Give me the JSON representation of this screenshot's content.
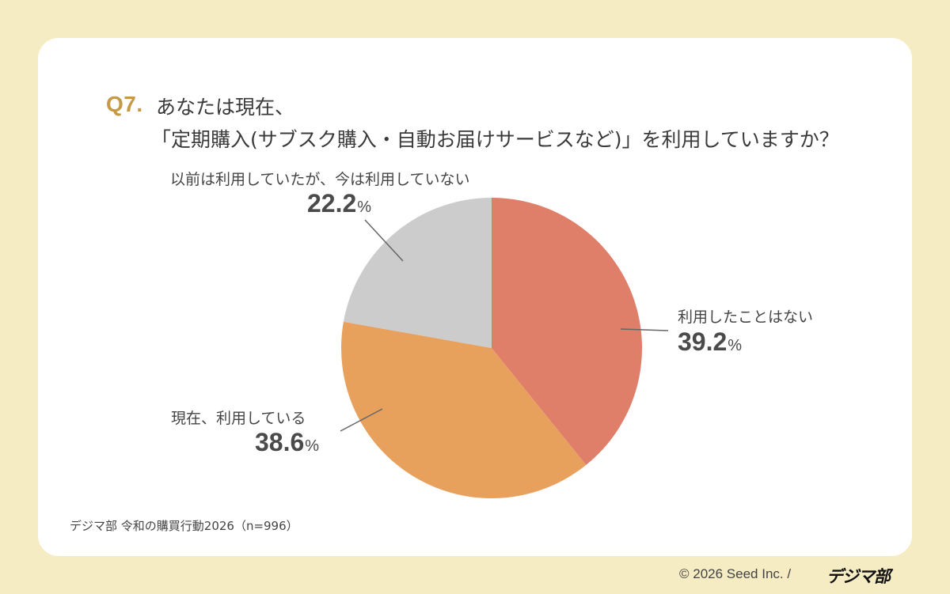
{
  "question": {
    "number": "Q7.",
    "line1": "あなたは現在、",
    "line2": "「定期購入(サブスク購入・自動お届けサービスなど)」を利用していますか？"
  },
  "labels": {
    "never": {
      "text": "利用したことはない",
      "value": "39.2",
      "unit": "%"
    },
    "current": {
      "text": "現在、利用している",
      "value": "38.6",
      "unit": "%"
    },
    "former": {
      "text": "以前は利用していたが、今は利用していない",
      "value": "22.2",
      "unit": "%"
    }
  },
  "colors": {
    "background": "#f5ecc4",
    "card": "#ffffff",
    "accent": "#c49a45",
    "never": "#e07f69",
    "current": "#e8a05d",
    "former": "#cccccc"
  },
  "footer": {
    "source": "デジマ部 令和の購買行動2026（n=996）",
    "copyright": "© 2026 Seed Inc. /",
    "brand": "デジマ部"
  },
  "chart_data": {
    "type": "pie",
    "title": "Q7. あなたは現在、「定期購入(サブスク購入・自動お届けサービスなど)」を利用していますか？",
    "categories": [
      "利用したことはない",
      "現在、利用している",
      "以前は利用していたが、今は利用していない"
    ],
    "values": [
      39.2,
      38.6,
      22.2
    ],
    "unit": "%",
    "start_angle": "12 o'clock, clockwise",
    "colors": [
      "#e07f69",
      "#e8a05d",
      "#cccccc"
    ],
    "note": "デジマ部 令和の購買行動2026（n=996）"
  }
}
